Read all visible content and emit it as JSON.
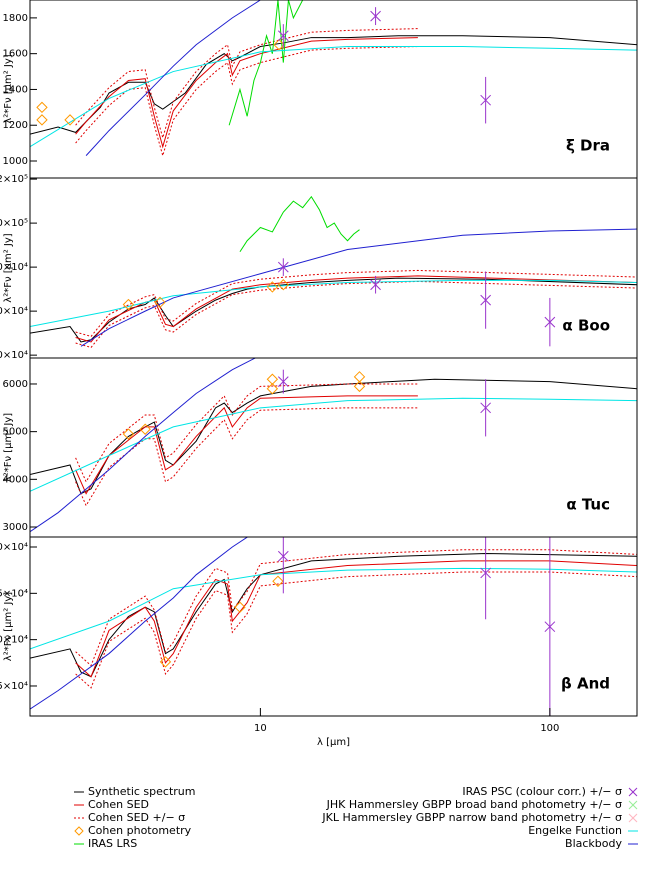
{
  "chart_data": [
    {
      "type": "line",
      "label": "ξ Dra",
      "ylabel": "λ²*Fν [μm² Jy]",
      "xlim": [
        1.6,
        200
      ],
      "ylim": [
        905,
        1900
      ],
      "yticks": [
        1000,
        1200,
        1400,
        1600,
        1800
      ],
      "series": [
        {
          "style": "solid",
          "color": "#000000",
          "x": [
            1.6,
            2.0,
            2.3,
            2.5,
            2.8,
            3.0,
            3.5,
            4.0,
            4.3,
            4.6,
            5.5,
            6.5,
            7.5,
            8.0,
            8.5,
            10,
            12,
            15,
            20,
            30,
            50,
            100,
            200
          ],
          "values": [
            1150,
            1190,
            1160,
            1220,
            1300,
            1380,
            1440,
            1440,
            1320,
            1290,
            1380,
            1540,
            1600,
            1560,
            1580,
            1640,
            1660,
            1690,
            1690,
            1700,
            1700,
            1690,
            1650
          ]
        },
        {
          "style": "solid",
          "color": "#e00000",
          "x": [
            2.3,
            2.5,
            3,
            3.5,
            4,
            4.3,
            4.6,
            5,
            6,
            7,
            7.7,
            8,
            8.5,
            10,
            15,
            20,
            35
          ],
          "values": [
            1150,
            1220,
            1360,
            1450,
            1460,
            1250,
            1080,
            1280,
            1450,
            1550,
            1600,
            1480,
            1560,
            1600,
            1670,
            1680,
            1690
          ],
          "sigma": [
            50,
            50,
            50,
            50,
            50,
            50,
            50,
            50,
            50,
            50,
            50,
            50,
            50,
            50,
            50,
            50,
            50
          ]
        },
        {
          "style": "solid",
          "color": "#00dd00",
          "x": [
            7.8,
            8.5,
            9,
            9.5,
            10,
            10.5,
            11,
            11.5,
            12,
            12.5,
            13,
            14
          ],
          "values": [
            1200,
            1400,
            1250,
            1450,
            1550,
            1700,
            1600,
            1900,
            1550,
            1900,
            1800,
            1900
          ]
        },
        {
          "style": "solid",
          "color": "#00e5e5",
          "x": [
            1.6,
            3,
            5,
            10,
            20,
            50,
            100,
            200
          ],
          "values": [
            1080,
            1350,
            1500,
            1610,
            1640,
            1640,
            1630,
            1620
          ]
        },
        {
          "style": "solid",
          "color": "#2020d0",
          "x": [
            2.5,
            3,
            4,
            5,
            6,
            8,
            10,
            12
          ],
          "values": [
            1030,
            1170,
            1370,
            1530,
            1650,
            1800,
            1900,
            1980
          ]
        },
        {
          "style": "diamond",
          "color": "#ff9900",
          "x": [
            1.76,
            1.76,
            2.2,
            11.6
          ],
          "values": [
            1300,
            1230,
            1230,
            1650
          ]
        },
        {
          "style": "cross",
          "color": "#9933cc",
          "x": [
            12,
            25,
            60
          ],
          "values": [
            1700,
            1810,
            1340
          ],
          "errors": [
            65,
            50,
            130
          ]
        }
      ]
    },
    {
      "type": "line",
      "label": "α Boo",
      "ylabel": "λ²*Fν [μm² Jy]",
      "xlim": [
        1.6,
        200
      ],
      "ylim": [
        38700,
        120500
      ],
      "yticks": [
        {
          "value": 40000,
          "label": "4.0×10⁴"
        },
        {
          "value": 60000,
          "label": "6.0×10⁴"
        },
        {
          "value": 80000,
          "label": "8.0×10⁴"
        },
        {
          "value": 100000,
          "label": "1.0×10⁵"
        },
        {
          "value": 120000,
          "label": "1.2×10⁵"
        }
      ],
      "series": [
        {
          "style": "solid",
          "color": "#000000",
          "x": [
            1.6,
            2.2,
            2.4,
            2.6,
            3,
            3.5,
            4,
            4.3,
            4.7,
            5,
            6,
            7,
            8,
            9,
            10,
            15,
            20,
            30,
            60,
            200
          ],
          "values": [
            50000,
            53000,
            46000,
            47000,
            55000,
            61000,
            63000,
            66000,
            58000,
            53000,
            60000,
            65000,
            68000,
            70000,
            71000,
            73000,
            74000,
            75000,
            74500,
            72000
          ]
        },
        {
          "style": "solid",
          "color": "#e00000",
          "x": [
            2.3,
            2.6,
            3,
            4,
            4.3,
            4.7,
            5,
            6,
            7.5,
            8,
            10,
            15,
            20,
            35,
            200
          ],
          "values": [
            48000,
            46000,
            56000,
            64000,
            65000,
            54000,
            53000,
            61000,
            68000,
            70000,
            72000,
            74000,
            75000,
            76000,
            73000
          ],
          "sigma": [
            2500,
            2500,
            2500,
            2500,
            2500,
            2500,
            2500,
            2500,
            2500,
            2500,
            2500,
            2500,
            2500,
            2500,
            2500
          ]
        },
        {
          "style": "solid",
          "color": "#00dd00",
          "x": [
            8.5,
            9,
            10,
            11,
            12,
            13,
            14,
            15,
            16,
            17,
            18,
            19,
            20,
            21,
            22
          ],
          "values": [
            87000,
            92000,
            98000,
            96000,
            105000,
            110000,
            107000,
            112000,
            106000,
            98000,
            100000,
            95000,
            92000,
            95000,
            97000
          ]
        },
        {
          "style": "solid",
          "color": "#00e5e5",
          "x": [
            1.6,
            3,
            5,
            10,
            20,
            50,
            100,
            200
          ],
          "values": [
            53000,
            60000,
            67000,
            71000,
            73000,
            74000,
            74000,
            73000
          ]
        },
        {
          "style": "solid",
          "color": "#2020d0",
          "x": [
            2.4,
            3,
            4,
            5,
            10,
            20,
            50,
            100,
            200
          ],
          "values": [
            44000,
            52000,
            60000,
            66000,
            77000,
            88000,
            94500,
            96400,
            97300
          ]
        },
        {
          "style": "diamond",
          "color": "#ff9900",
          "x": [
            3.5,
            4.5,
            11,
            12
          ],
          "values": [
            63000,
            64000,
            71000,
            72000
          ]
        },
        {
          "style": "cross",
          "color": "#9933cc",
          "x": [
            12,
            25,
            60,
            100
          ],
          "values": [
            80000,
            72000,
            65000,
            55000
          ],
          "errors": [
            4000,
            4000,
            13000,
            11000
          ]
        }
      ]
    },
    {
      "type": "line",
      "label": "α Tuc",
      "ylabel": "λ²*Fν [μm² Jy]",
      "xlim": [
        1.6,
        200
      ],
      "ylim": [
        2790,
        6545
      ],
      "yticks": [
        3000,
        4000,
        5000,
        6000
      ],
      "series": [
        {
          "style": "solid",
          "color": "#000000",
          "x": [
            1.6,
            2.2,
            2.4,
            2.6,
            3,
            3.5,
            4,
            4.3,
            4.7,
            5,
            6,
            7,
            7.5,
            8,
            9,
            10,
            15,
            20,
            40,
            100,
            200
          ],
          "values": [
            4100,
            4300,
            3700,
            3800,
            4500,
            4900,
            5100,
            5200,
            4400,
            4300,
            4800,
            5500,
            5600,
            5400,
            5600,
            5750,
            5950,
            6000,
            6100,
            6050,
            5900
          ]
        },
        {
          "style": "solid",
          "color": "#e00000",
          "x": [
            2.3,
            2.5,
            3,
            4,
            4.3,
            4.7,
            5,
            6,
            7.5,
            8,
            9,
            10,
            20,
            35
          ],
          "values": [
            4200,
            3700,
            4500,
            5100,
            5100,
            4200,
            4300,
            4900,
            5500,
            5100,
            5500,
            5700,
            5750,
            5750
          ],
          "sigma": [
            250,
            250,
            250,
            250,
            250,
            250,
            250,
            250,
            250,
            250,
            250,
            250,
            250,
            250
          ]
        },
        {
          "style": "solid",
          "color": "#00e5e5",
          "x": [
            1.6,
            3,
            5,
            10,
            20,
            50,
            100,
            200
          ],
          "values": [
            3750,
            4500,
            5100,
            5500,
            5650,
            5700,
            5680,
            5650
          ]
        },
        {
          "style": "solid",
          "color": "#2020d0",
          "x": [
            1.6,
            2,
            3,
            4,
            5,
            6,
            8,
            10
          ],
          "values": [
            2900,
            3300,
            4200,
            4900,
            5400,
            5800,
            6300,
            6600
          ]
        },
        {
          "style": "diamond",
          "color": "#ff9900",
          "x": [
            3.5,
            4,
            11,
            11,
            22,
            22
          ],
          "values": [
            4950,
            5050,
            6100,
            5900,
            6150,
            5950
          ]
        },
        {
          "style": "cross",
          "color": "#9933cc",
          "x": [
            12,
            60
          ],
          "values": [
            6050,
            5500
          ],
          "errors": [
            250,
            600
          ]
        }
      ]
    },
    {
      "type": "line",
      "label": "β And",
      "ylabel": "λ²*Fν [μm² Jy]",
      "xlim": [
        1.6,
        200
      ],
      "ylim": [
        11760,
        31080
      ],
      "yticks": [
        {
          "value": 15000,
          "label": "1.5×10⁴"
        },
        {
          "value": 20000,
          "label": "2.0×10⁴"
        },
        {
          "value": 25000,
          "label": "2.5×10⁴"
        },
        {
          "value": 30000,
          "label": "3.0×10⁴"
        }
      ],
      "xticks": [
        10,
        100
      ],
      "xlabel": "λ [μm]",
      "series": [
        {
          "style": "solid",
          "color": "#000000",
          "x": [
            1.6,
            2.2,
            2.4,
            2.6,
            3,
            3.5,
            4,
            4.3,
            4.7,
            5,
            6,
            7,
            7.5,
            8,
            9,
            10,
            15,
            30,
            60,
            200
          ],
          "values": [
            18000,
            19000,
            16500,
            16000,
            20000,
            22500,
            23500,
            23000,
            18500,
            19000,
            23000,
            26000,
            26500,
            23000,
            25500,
            27000,
            28500,
            29000,
            29300,
            29000
          ]
        },
        {
          "style": "solid",
          "color": "#e00000",
          "x": [
            2.3,
            2.6,
            3,
            4,
            4.3,
            4.7,
            5,
            6,
            7,
            7.7,
            8,
            9,
            10,
            20,
            50,
            100,
            200
          ],
          "values": [
            17500,
            16000,
            21000,
            23500,
            22000,
            17500,
            18500,
            23500,
            26500,
            26000,
            22000,
            24000,
            27000,
            28000,
            28500,
            28500,
            28000
          ],
          "sigma": [
            1200,
            1200,
            1200,
            1200,
            1200,
            1200,
            1200,
            1200,
            1200,
            1200,
            1200,
            1200,
            1200,
            1200,
            1200,
            1200,
            1200
          ]
        },
        {
          "style": "solid",
          "color": "#00e5e5",
          "x": [
            1.6,
            3,
            5,
            10,
            20,
            50,
            100,
            200
          ],
          "values": [
            19000,
            22000,
            25500,
            27000,
            27500,
            27700,
            27600,
            27300
          ]
        },
        {
          "style": "solid",
          "color": "#2020d0",
          "x": [
            1.6,
            2,
            3,
            4,
            5,
            6,
            8,
            10
          ],
          "values": [
            12500,
            14500,
            18500,
            22000,
            24500,
            27000,
            30000,
            32000
          ]
        },
        {
          "style": "diamond",
          "color": "#ff9900",
          "x": [
            4.7,
            8.5,
            11.5
          ],
          "values": [
            17600,
            23500,
            26300
          ]
        },
        {
          "style": "cross",
          "color": "#9933cc",
          "x": [
            12,
            60,
            100
          ],
          "values": [
            29000,
            27200,
            21400
          ],
          "errors": [
            4000,
            5000,
            10000
          ]
        }
      ]
    }
  ],
  "legend": [
    {
      "label": "Synthetic spectrum",
      "color": "#000000",
      "symbol": "line",
      "column": "left"
    },
    {
      "label": "Cohen SED",
      "color": "#e00000",
      "symbol": "line",
      "column": "left"
    },
    {
      "label": "Cohen SED +/− σ",
      "color": "#e00000",
      "symbol": "dotted",
      "column": "left"
    },
    {
      "label": "Cohen photometry",
      "color": "#ff9900",
      "symbol": "diamond",
      "column": "left"
    },
    {
      "label": "IRAS LRS",
      "color": "#00dd00",
      "symbol": "line",
      "column": "left"
    },
    {
      "label": "IRAS PSC (colour corr.) +/− σ",
      "color": "#9933cc",
      "symbol": "cross",
      "column": "right"
    },
    {
      "label": "JHK Hammersley GBPP broad band photometry +/− σ",
      "color": "#99ee99",
      "symbol": "cross",
      "column": "right"
    },
    {
      "label": "JKL Hammersley GBPP narrow band photometry +/− σ",
      "color": "#ffb6c1",
      "symbol": "cross",
      "column": "right"
    },
    {
      "label": "Engelke Function",
      "color": "#00e5e5",
      "symbol": "line",
      "column": "right"
    },
    {
      "label": "Blackbody",
      "color": "#2020d0",
      "symbol": "line",
      "column": "right"
    }
  ]
}
